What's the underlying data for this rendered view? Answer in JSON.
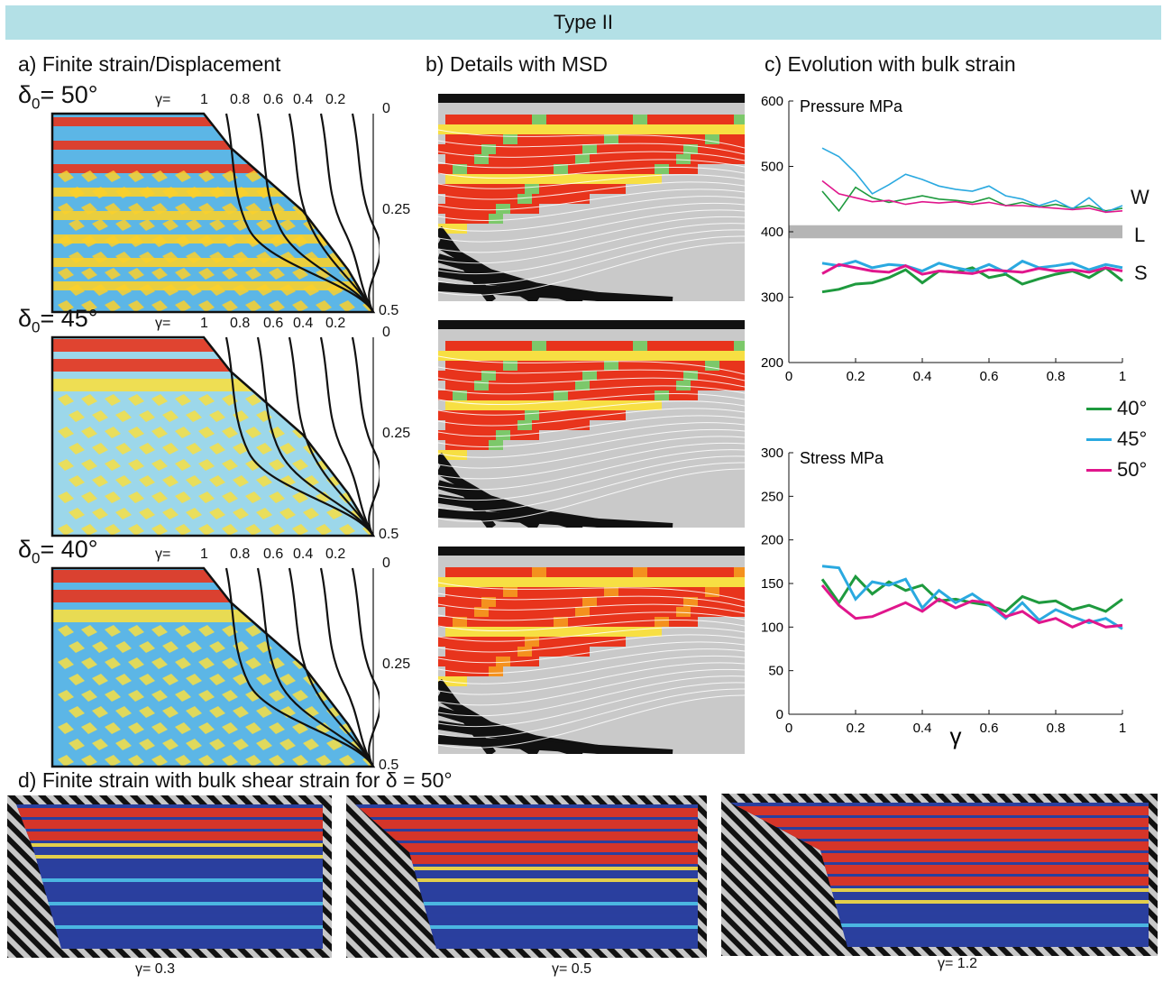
{
  "banner": "Type II",
  "panel_labels": {
    "a": "a) Finite strain/Displacement",
    "b": "b) Details with MSD",
    "c": "c) Evolution with bulk strain",
    "d": "d)  Finite strain with  bulk shear strain for δ = 50°"
  },
  "panel_a": [
    {
      "delta": "δ",
      "sub": "0",
      "angle": "= 50°"
    },
    {
      "delta": "δ",
      "sub": "0",
      "angle": "= 45°"
    },
    {
      "delta": "δ",
      "sub": "0",
      "angle": "= 40°"
    }
  ],
  "gamma_row": {
    "prefix": "γ=",
    "ticks": [
      "1",
      "0.8",
      "0.6",
      "0.4",
      "0.2"
    ]
  },
  "right_ticks": [
    "0",
    "0.25",
    "0.5"
  ],
  "pressure_chart": {
    "ylabel": "Pressure MPa",
    "yticks": [
      "600",
      "500",
      "400",
      "300",
      "200"
    ],
    "xticks": [
      "0",
      "0.2",
      "0.4",
      "0.6",
      "0.8",
      "1"
    ],
    "wls": [
      "W",
      "L",
      "S"
    ]
  },
  "stress_chart": {
    "ylabel": "Stress MPa",
    "yticks": [
      "300",
      "250",
      "200",
      "150",
      "100",
      "50",
      "0"
    ],
    "xticks": [
      "0",
      "0.2",
      "0.4",
      "0.6",
      "0.8",
      "1"
    ],
    "xlabel": "γ"
  },
  "legend": [
    {
      "label": "40°",
      "color": "#1e9a3e"
    },
    {
      "label": "45°",
      "color": "#2aa9e0"
    },
    {
      "label": "50°",
      "color": "#e0168c"
    }
  ],
  "captions_d": [
    "γ= 0.3",
    "γ= 0.5",
    "γ= 1.2"
  ],
  "chart_data": [
    {
      "type": "line",
      "title": "",
      "ylabel": "Pressure MPa",
      "xlabel": "",
      "xlim": [
        0,
        1
      ],
      "ylim": [
        200,
        600
      ],
      "grid": false,
      "band": {
        "label": "L",
        "y": [
          390,
          410
        ]
      },
      "series": [
        {
          "name": "40°",
          "color": "#1e9a3e",
          "x": [
            0.1,
            0.15,
            0.2,
            0.25,
            0.3,
            0.35,
            0.4,
            0.45,
            0.5,
            0.55,
            0.6,
            0.65,
            0.7,
            0.75,
            0.8,
            0.85,
            0.9,
            0.95,
            1.0
          ],
          "y": [
            462,
            432,
            468,
            452,
            445,
            450,
            455,
            450,
            448,
            445,
            452,
            440,
            445,
            438,
            442,
            436,
            440,
            432,
            436
          ]
        },
        {
          "name": "45°",
          "color": "#2aa9e0",
          "x": [
            0.1,
            0.15,
            0.2,
            0.25,
            0.3,
            0.35,
            0.4,
            0.45,
            0.5,
            0.55,
            0.6,
            0.65,
            0.7,
            0.75,
            0.8,
            0.85,
            0.9,
            0.95,
            1.0
          ],
          "y": [
            528,
            515,
            490,
            458,
            472,
            488,
            480,
            470,
            465,
            462,
            470,
            455,
            450,
            440,
            448,
            435,
            452,
            430,
            440
          ]
        },
        {
          "name": "50°",
          "color": "#e0168c",
          "x": [
            0.1,
            0.15,
            0.2,
            0.25,
            0.3,
            0.35,
            0.4,
            0.45,
            0.5,
            0.55,
            0.6,
            0.65,
            0.7,
            0.75,
            0.8,
            0.85,
            0.9,
            0.95,
            1.0
          ],
          "y": [
            478,
            458,
            452,
            446,
            448,
            442,
            446,
            444,
            446,
            442,
            445,
            440,
            440,
            438,
            436,
            434,
            436,
            430,
            432
          ]
        },
        {
          "name": "40°",
          "color": "#1e9a3e",
          "x": [
            0.1,
            0.15,
            0.2,
            0.25,
            0.3,
            0.35,
            0.4,
            0.45,
            0.5,
            0.55,
            0.6,
            0.65,
            0.7,
            0.75,
            0.8,
            0.85,
            0.9,
            0.95,
            1.0
          ],
          "y": [
            308,
            312,
            320,
            322,
            330,
            342,
            322,
            340,
            338,
            345,
            330,
            335,
            320,
            328,
            335,
            340,
            330,
            345,
            325
          ]
        },
        {
          "name": "45°",
          "color": "#2aa9e0",
          "x": [
            0.1,
            0.15,
            0.2,
            0.25,
            0.3,
            0.35,
            0.4,
            0.45,
            0.5,
            0.55,
            0.6,
            0.65,
            0.7,
            0.75,
            0.8,
            0.85,
            0.9,
            0.95,
            1.0
          ],
          "y": [
            352,
            348,
            355,
            345,
            350,
            348,
            340,
            352,
            345,
            340,
            350,
            338,
            355,
            345,
            348,
            352,
            342,
            350,
            345
          ]
        },
        {
          "name": "50°",
          "color": "#e0168c",
          "x": [
            0.1,
            0.15,
            0.2,
            0.25,
            0.3,
            0.35,
            0.4,
            0.45,
            0.5,
            0.55,
            0.6,
            0.65,
            0.7,
            0.75,
            0.8,
            0.85,
            0.9,
            0.95,
            1.0
          ],
          "y": [
            336,
            350,
            345,
            340,
            338,
            348,
            335,
            340,
            338,
            336,
            342,
            340,
            338,
            344,
            340,
            342,
            338,
            345,
            340
          ]
        }
      ]
    },
    {
      "type": "line",
      "title": "",
      "ylabel": "Stress MPa",
      "xlabel": "γ",
      "xlim": [
        0,
        1
      ],
      "ylim": [
        0,
        300
      ],
      "grid": false,
      "series": [
        {
          "name": "40°",
          "color": "#1e9a3e",
          "x": [
            0.1,
            0.15,
            0.2,
            0.25,
            0.3,
            0.35,
            0.4,
            0.45,
            0.5,
            0.55,
            0.6,
            0.65,
            0.7,
            0.75,
            0.8,
            0.85,
            0.9,
            0.95,
            1.0
          ],
          "y": [
            155,
            128,
            158,
            138,
            152,
            142,
            148,
            130,
            132,
            128,
            125,
            118,
            135,
            128,
            130,
            120,
            125,
            118,
            132
          ]
        },
        {
          "name": "45°",
          "color": "#2aa9e0",
          "x": [
            0.1,
            0.15,
            0.2,
            0.25,
            0.3,
            0.35,
            0.4,
            0.45,
            0.5,
            0.55,
            0.6,
            0.65,
            0.7,
            0.75,
            0.8,
            0.85,
            0.9,
            0.95,
            1.0
          ],
          "y": [
            170,
            168,
            132,
            152,
            148,
            155,
            122,
            142,
            128,
            138,
            125,
            110,
            128,
            108,
            120,
            112,
            105,
            110,
            98
          ]
        },
        {
          "name": "50°",
          "color": "#e0168c",
          "x": [
            0.1,
            0.15,
            0.2,
            0.25,
            0.3,
            0.35,
            0.4,
            0.45,
            0.5,
            0.55,
            0.6,
            0.65,
            0.7,
            0.75,
            0.8,
            0.85,
            0.9,
            0.95,
            1.0
          ],
          "y": [
            148,
            125,
            110,
            112,
            120,
            128,
            118,
            132,
            122,
            130,
            128,
            112,
            118,
            105,
            110,
            100,
            108,
            100,
            102
          ]
        }
      ]
    }
  ]
}
